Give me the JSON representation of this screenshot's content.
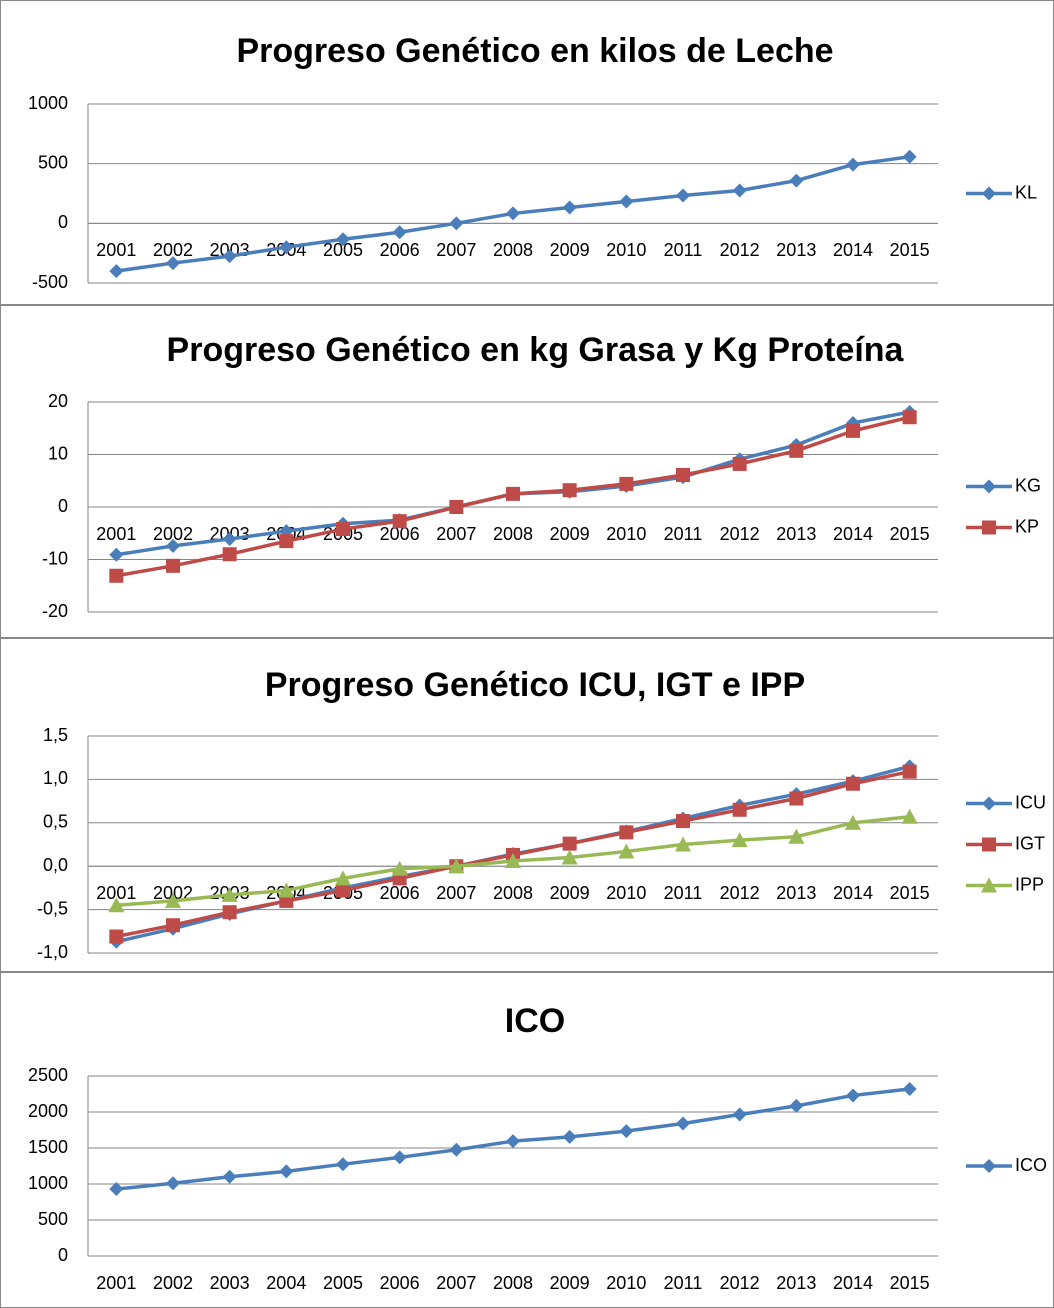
{
  "chart_data": [
    {
      "type": "line",
      "title": "Progreso Genético en kilos de Leche",
      "categories": [
        "2001",
        "2002",
        "2003",
        "2004",
        "2005",
        "2006",
        "2007",
        "2008",
        "2009",
        "2010",
        "2011",
        "2012",
        "2013",
        "2014",
        "2015"
      ],
      "series": [
        {
          "name": "KL",
          "color": "#4a7ebb",
          "marker": "diamond",
          "values": [
            -400,
            -333,
            -275,
            -200,
            -133,
            -75,
            0,
            83,
            133,
            183,
            233,
            275,
            358,
            492,
            558
          ]
        }
      ],
      "ylim": [
        -500,
        1000
      ],
      "yticks": [
        -500,
        0,
        500,
        1000
      ],
      "grid": true,
      "legend": "right"
    },
    {
      "type": "line",
      "title": "Progreso Genético en kg Grasa y Kg Proteína",
      "categories": [
        "2001",
        "2002",
        "2003",
        "2004",
        "2005",
        "2006",
        "2007",
        "2008",
        "2009",
        "2010",
        "2011",
        "2012",
        "2013",
        "2014",
        "2015"
      ],
      "series": [
        {
          "name": "KG",
          "color": "#4a7ebb",
          "marker": "diamond",
          "values": [
            -9.1,
            -7.4,
            -6.1,
            -4.6,
            -3.2,
            -2.5,
            0,
            2.5,
            2.9,
            4,
            5.7,
            9.1,
            11.8,
            16,
            18.1
          ]
        },
        {
          "name": "KP",
          "color": "#be4b48",
          "marker": "square",
          "values": [
            -13.1,
            -11.2,
            -9,
            -6.5,
            -4.2,
            -2.7,
            0,
            2.5,
            3.2,
            4.4,
            6.1,
            8.2,
            10.7,
            14.5,
            17.1
          ]
        }
      ],
      "ylim": [
        -20,
        20
      ],
      "yticks": [
        -20,
        -10,
        0,
        10,
        20
      ],
      "grid": true,
      "legend": "right"
    },
    {
      "type": "line",
      "title": "Progreso Genético ICU, IGT e IPP",
      "categories": [
        "2001",
        "2002",
        "2003",
        "2004",
        "2005",
        "2006",
        "2007",
        "2008",
        "2009",
        "2010",
        "2011",
        "2012",
        "2013",
        "2014",
        "2015"
      ],
      "series": [
        {
          "name": "ICU",
          "color": "#4a7ebb",
          "marker": "diamond",
          "values": [
            -0.87,
            -0.72,
            -0.55,
            -0.4,
            -0.25,
            -0.12,
            0,
            0.14,
            0.26,
            0.4,
            0.55,
            0.7,
            0.83,
            0.98,
            1.15
          ]
        },
        {
          "name": "IGT",
          "color": "#be4b48",
          "marker": "square",
          "values": [
            -0.81,
            -0.68,
            -0.53,
            -0.4,
            -0.28,
            -0.14,
            0,
            0.13,
            0.26,
            0.39,
            0.52,
            0.65,
            0.78,
            0.95,
            1.09
          ]
        },
        {
          "name": "IPP",
          "color": "#98b954",
          "marker": "triangle",
          "values": [
            -0.45,
            -0.4,
            -0.33,
            -0.28,
            -0.14,
            -0.03,
            0,
            0.06,
            0.1,
            0.17,
            0.25,
            0.3,
            0.34,
            0.5,
            0.57
          ]
        }
      ],
      "ylim": [
        -1,
        1.5
      ],
      "yticks": [
        {
          "value": -1,
          "label": "-1,0"
        },
        {
          "value": -0.5,
          "label": "-0,5"
        },
        {
          "value": 0,
          "label": "0,0"
        },
        {
          "value": 0.5,
          "label": "0,5"
        },
        {
          "value": 1,
          "label": "1,0"
        },
        {
          "value": 1.5,
          "label": "1,5"
        }
      ],
      "grid": true,
      "legend": "right"
    },
    {
      "type": "line",
      "title": "ICO",
      "categories": [
        "2001",
        "2002",
        "2003",
        "2004",
        "2005",
        "2006",
        "2007",
        "2008",
        "2009",
        "2010",
        "2011",
        "2012",
        "2013",
        "2014",
        "2015"
      ],
      "series": [
        {
          "name": "ICO",
          "color": "#4a7ebb",
          "marker": "diamond",
          "values": [
            930,
            1010,
            1100,
            1175,
            1275,
            1370,
            1475,
            1595,
            1655,
            1735,
            1840,
            1965,
            2085,
            2230,
            2320
          ]
        }
      ],
      "ylim": [
        0,
        2500
      ],
      "yticks": [
        0,
        500,
        1000,
        1500,
        2000,
        2500
      ],
      "grid": true,
      "legend": "right"
    }
  ]
}
